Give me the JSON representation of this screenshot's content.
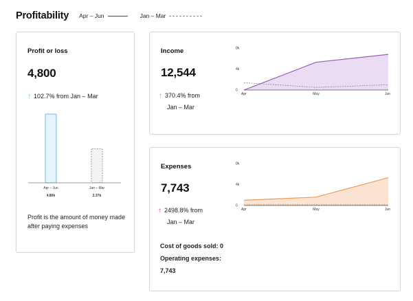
{
  "page": {
    "title": "Profitability",
    "legend": {
      "current_label": "Apr – Jun",
      "previous_label": "Jan – Mar"
    }
  },
  "profit": {
    "title": "Profit or loss",
    "value": "4,800",
    "change_pct": "102.7%",
    "change_from": "from Jan – Mar",
    "change_direction": "up",
    "description": "Profit is the amount of money made after paying expenses",
    "bars": [
      {
        "label": "Apr – Jun",
        "value_label": "4.80k",
        "value": 4800
      },
      {
        "label": "Jan – Mar",
        "value_label": "2.37k",
        "value": 2370
      }
    ]
  },
  "income": {
    "title": "Income",
    "value": "12,544",
    "change_pct": "370.4%",
    "change_word": "from",
    "change_from": "Jan – Mar",
    "change_direction": "up",
    "chart": {
      "y_ticks": [
        "8k",
        "4k",
        "0"
      ],
      "y_max": 8000,
      "x_labels": [
        "Apr",
        "May",
        "Jun"
      ],
      "current": [
        0,
        5300,
        6800
      ],
      "previous": [
        1400,
        500,
        1000
      ]
    }
  },
  "expenses": {
    "title": "Expenses",
    "value": "7,743",
    "change_pct": "2498.8%",
    "change_word": "from",
    "change_from": "Jan – Mar",
    "change_direction": "up",
    "cost_of_goods_label": "Cost of goods sold: 0",
    "operating_label": "Operating expenses:",
    "operating_value": "7,743",
    "chart": {
      "y_ticks": [
        "8k",
        "4k",
        "0"
      ],
      "y_max": 8000,
      "x_labels": [
        "Apr",
        "May",
        "Jun"
      ],
      "current": [
        1000,
        1600,
        5300
      ],
      "previous": [
        150,
        150,
        150
      ]
    }
  },
  "colors": {
    "income_line": "#9b5fb5",
    "income_fill": "#eadcf2",
    "expenses_line": "#f09a55",
    "expenses_fill": "#fde4d2",
    "bar_current_fill": "#e6f4fb",
    "bar_current_stroke": "#6bbde8",
    "bar_previous_fill": "#f3f3f3",
    "bar_previous_stroke": "#9a9a9a",
    "up_green": "#5dbd8f",
    "up_red": "#e0463d"
  }
}
